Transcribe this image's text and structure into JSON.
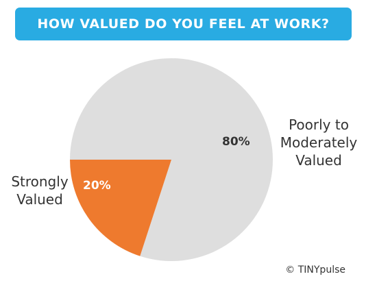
{
  "header": {
    "title": "HOW VALUED DO YOU FEEL AT WORK?"
  },
  "colors": {
    "banner": "#29abe2",
    "large_slice": "#dedede",
    "small_slice": "#ee7a2e",
    "label_text": "#333333",
    "pct_on_orange": "#ffffff"
  },
  "chart_data": {
    "type": "pie",
    "title": "HOW VALUED DO YOU FEEL AT WORK?",
    "slices": [
      {
        "label_lines": [
          "Poorly to",
          "Moderately",
          "Valued"
        ],
        "value": 80,
        "value_label": "80%"
      },
      {
        "label_lines": [
          "Strongly",
          "Valued"
        ],
        "value": 20,
        "value_label": "20%"
      }
    ]
  },
  "footer": {
    "credit": "© TINYpulse"
  }
}
